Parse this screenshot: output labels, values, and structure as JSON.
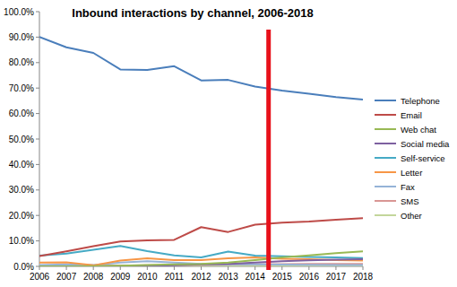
{
  "chart_data": {
    "type": "line",
    "title": "Inbound interactions by channel, 2006-2018",
    "categories": [
      "2006",
      "2007",
      "2008",
      "2009",
      "2010",
      "2011",
      "2012",
      "2013",
      "2014",
      "2015",
      "2016",
      "2017",
      "2018"
    ],
    "series": [
      {
        "name": "Telephone",
        "color": "#4a7ebb",
        "values": [
          90.1,
          86.0,
          83.8,
          77.3,
          77.1,
          78.6,
          73.0,
          73.2,
          70.6,
          69.0,
          67.8,
          66.5,
          65.5
        ]
      },
      {
        "name": "Email",
        "color": "#be4b48",
        "values": [
          4.0,
          5.9,
          7.9,
          9.8,
          10.2,
          10.4,
          15.4,
          13.5,
          16.4,
          17.2,
          17.6,
          18.3,
          18.9
        ]
      },
      {
        "name": "Web chat",
        "color": "#98b954",
        "values": [
          0.0,
          0.0,
          0.1,
          0.3,
          0.5,
          0.8,
          1.0,
          1.5,
          2.5,
          3.5,
          4.3,
          5.2,
          5.9
        ]
      },
      {
        "name": "Social media",
        "color": "#7d60a0",
        "values": [
          0.0,
          0.0,
          0.0,
          0.1,
          0.2,
          0.4,
          0.8,
          1.0,
          1.5,
          2.0,
          2.4,
          2.6,
          2.8
        ]
      },
      {
        "name": "Self-service",
        "color": "#46aac5",
        "values": [
          4.2,
          5.0,
          6.5,
          8.0,
          6.0,
          4.3,
          3.5,
          5.8,
          4.2,
          4.0,
          3.7,
          3.5,
          3.3
        ]
      },
      {
        "name": "Letter",
        "color": "#f79646",
        "values": [
          1.5,
          1.6,
          0.4,
          2.3,
          3.2,
          2.5,
          2.5,
          3.2,
          3.5,
          3.0,
          2.8,
          2.5,
          2.3
        ]
      },
      {
        "name": "Fax",
        "color": "#95b3d7",
        "values": [
          0.5,
          0.8,
          0.5,
          1.5,
          2.0,
          1.5,
          1.0,
          0.8,
          0.8,
          0.7,
          0.6,
          0.5,
          0.5
        ]
      },
      {
        "name": "SMS",
        "color": "#d99694",
        "values": [
          0.2,
          0.2,
          0.2,
          0.3,
          0.4,
          0.5,
          0.6,
          0.7,
          0.8,
          0.9,
          1.0,
          1.0,
          1.0
        ]
      },
      {
        "name": "Other",
        "color": "#c3d69b",
        "values": [
          0.3,
          0.3,
          0.3,
          0.3,
          0.3,
          0.3,
          0.3,
          0.3,
          0.3,
          0.3,
          0.3,
          0.3,
          0.3
        ]
      }
    ],
    "ylim": [
      0,
      100
    ],
    "yticks": [
      {
        "value": 0,
        "label": "0.0%"
      },
      {
        "value": 10,
        "label": "10.0%"
      },
      {
        "value": 20,
        "label": "20.0%"
      },
      {
        "value": 30,
        "label": "30.0%"
      },
      {
        "value": 40,
        "label": "40.0%"
      },
      {
        "value": 50,
        "label": "50.0%"
      },
      {
        "value": 60,
        "label": "60.0%"
      },
      {
        "value": 70,
        "label": "70.0%"
      },
      {
        "value": 80,
        "label": "80.0%"
      },
      {
        "value": 90,
        "label": "90.0%"
      },
      {
        "value": 100,
        "label": "100.0%"
      }
    ],
    "grid": false,
    "legend": "right"
  }
}
